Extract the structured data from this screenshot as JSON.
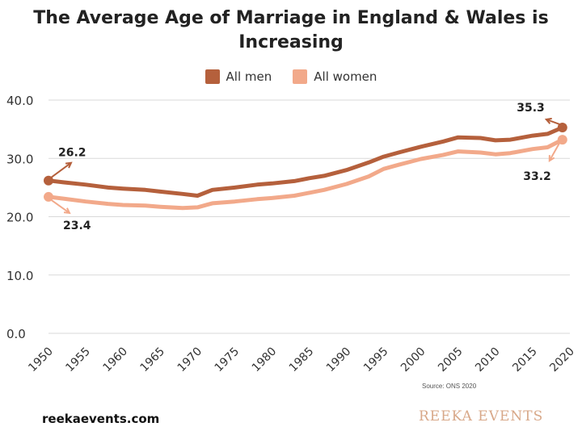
{
  "colors": {
    "men": "#b5603c",
    "women": "#f2a98a",
    "grid": "#d9d9d9",
    "text": "#222222"
  },
  "chart_data": {
    "type": "line",
    "title_line1": "The Average Age of Marriage in England & Wales is",
    "title_line2": "Increasing",
    "xlabel": "",
    "ylabel": "",
    "xlim": [
      1950,
      2020
    ],
    "ylim": [
      0,
      40
    ],
    "x_ticks": [
      "1950",
      "1955",
      "1960",
      "1965",
      "1970",
      "1975",
      "1980",
      "1985",
      "1990",
      "1995",
      "2000",
      "2005",
      "2010",
      "2015",
      "2020"
    ],
    "y_ticks": [
      "0.0",
      "10.0",
      "20.0",
      "30.0",
      "40.0"
    ],
    "x_tick_values": [
      1950,
      1955,
      1960,
      1965,
      1970,
      1975,
      1980,
      1985,
      1990,
      1995,
      2000,
      2005,
      2010,
      2015,
      2020
    ],
    "y_tick_values": [
      0,
      10,
      20,
      30,
      40
    ],
    "grid": true,
    "legend_position": "top-center",
    "x": [
      1950,
      1952,
      1955,
      1958,
      1960,
      1963,
      1965,
      1968,
      1970,
      1972,
      1975,
      1978,
      1980,
      1983,
      1985,
      1987,
      1990,
      1993,
      1995,
      1997,
      2000,
      2003,
      2005,
      2008,
      2010,
      2012,
      2015,
      2017,
      2019
    ],
    "series": [
      {
        "name": "All men",
        "values": [
          26.2,
          25.9,
          25.5,
          25.0,
          24.8,
          24.6,
          24.3,
          23.9,
          23.6,
          24.6,
          25.0,
          25.5,
          25.7,
          26.1,
          26.6,
          27.0,
          28.0,
          29.3,
          30.3,
          31.0,
          32.0,
          32.9,
          33.6,
          33.5,
          33.1,
          33.2,
          33.9,
          34.2,
          35.3
        ]
      },
      {
        "name": "All women",
        "values": [
          23.4,
          23.1,
          22.6,
          22.2,
          22.0,
          21.9,
          21.7,
          21.5,
          21.6,
          22.3,
          22.6,
          23.0,
          23.2,
          23.6,
          24.1,
          24.6,
          25.6,
          26.9,
          28.2,
          28.9,
          29.9,
          30.6,
          31.2,
          31.0,
          30.7,
          30.9,
          31.6,
          31.9,
          33.2
        ]
      }
    ],
    "annotations": [
      {
        "label": "26.2",
        "series": "All men",
        "x": 1950,
        "y": 26.2
      },
      {
        "label": "23.4",
        "series": "All women",
        "x": 1950,
        "y": 23.4
      },
      {
        "label": "35.3",
        "series": "All men",
        "x": 2019,
        "y": 35.3
      },
      {
        "label": "33.2",
        "series": "All women",
        "x": 2019,
        "y": 33.2
      }
    ]
  },
  "source_text": "Source: ONS 2020",
  "footer": {
    "website": "reekaevents.com",
    "brand": "REEKA EVENTS"
  }
}
